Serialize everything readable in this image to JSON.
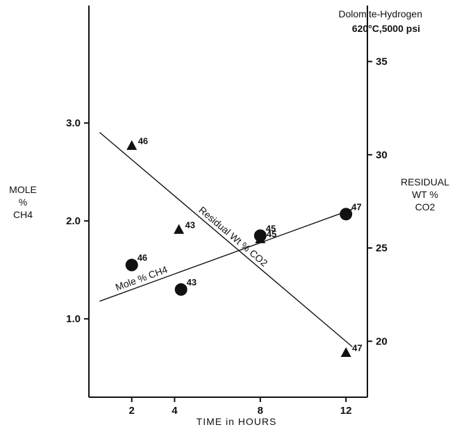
{
  "chart_data": {
    "type": "scatter",
    "title": "Dolomite-Hydrogen",
    "subtitle": "620°C,5000 psi",
    "xlabel": "TIME in HOURS",
    "x_ticks": [
      "2",
      "4",
      "8",
      "12"
    ],
    "x_tick_values": [
      2,
      4,
      8,
      12
    ],
    "xlim": [
      0,
      13
    ],
    "ylabel_left": [
      "MOLE",
      "%",
      "CH4"
    ],
    "y_left_ticks": [
      "1.0",
      "2.0",
      "3.0"
    ],
    "y_left_tick_values": [
      1.0,
      2.0,
      3.0
    ],
    "ylim_left": [
      0.2,
      4.2
    ],
    "ylabel_right": [
      "RESIDUAL",
      "WT %",
      "CO2"
    ],
    "y_right_ticks": [
      "20",
      "25",
      "30",
      "35"
    ],
    "y_right_tick_values": [
      20,
      25,
      30,
      35
    ],
    "ylim_right": [
      17,
      38
    ],
    "grid": false,
    "series": [
      {
        "name": "Mole % CH4",
        "marker": "circle",
        "axis": "left",
        "points": [
          {
            "x": 2,
            "y": 1.55,
            "label": "46"
          },
          {
            "x": 4.3,
            "y": 1.3,
            "label": "43"
          },
          {
            "x": 8,
            "y": 1.85,
            "label": "45"
          },
          {
            "x": 12,
            "y": 2.07,
            "label": "47"
          }
        ],
        "fit_line": {
          "x": [
            0.5,
            12.3
          ],
          "y": [
            1.18,
            2.12
          ]
        }
      },
      {
        "name": "Residual Wt % CO2",
        "marker": "triangle",
        "axis": "right",
        "points": [
          {
            "x": 2,
            "y": 30.5,
            "label": "46"
          },
          {
            "x": 4.2,
            "y": 26.0,
            "label": "43"
          },
          {
            "x": 8,
            "y": 25.5,
            "label": "45"
          },
          {
            "x": 12,
            "y": 19.4,
            "label": "47"
          }
        ],
        "fit_line": {
          "x": [
            0.5,
            12.3
          ],
          "y": [
            31.2,
            19.7
          ]
        }
      }
    ]
  }
}
